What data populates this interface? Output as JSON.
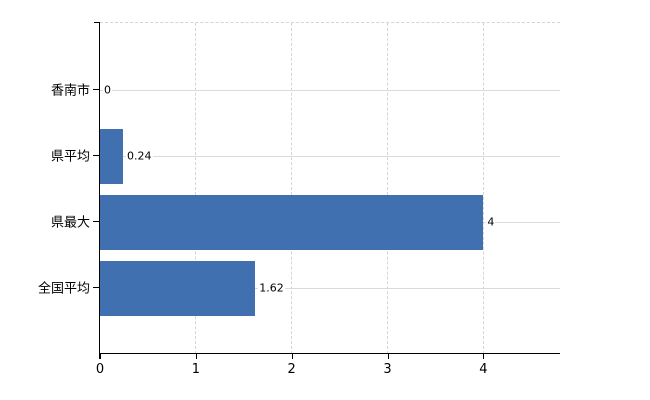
{
  "chart_data": {
    "type": "bar",
    "orientation": "horizontal",
    "categories": [
      "香南市",
      "県平均",
      "県最大",
      "全国平均"
    ],
    "values": [
      0,
      0.24,
      4,
      1.62
    ],
    "value_labels": [
      "0",
      "0.24",
      "4",
      "1.62"
    ],
    "x_tick_labels": [
      "0",
      "1",
      "2",
      "3",
      "4"
    ],
    "x_tick_values": [
      0,
      1,
      2,
      3,
      4
    ],
    "xlim": [
      0,
      4.8
    ],
    "grid": true,
    "legend": false,
    "colors": {
      "bar": "#4170b0",
      "gridline_vertical": "#d5d5d5",
      "gridline_horizontal": "#d8ddd8",
      "axis": "#000000",
      "text": "#000000",
      "background": "#ffffff"
    }
  }
}
